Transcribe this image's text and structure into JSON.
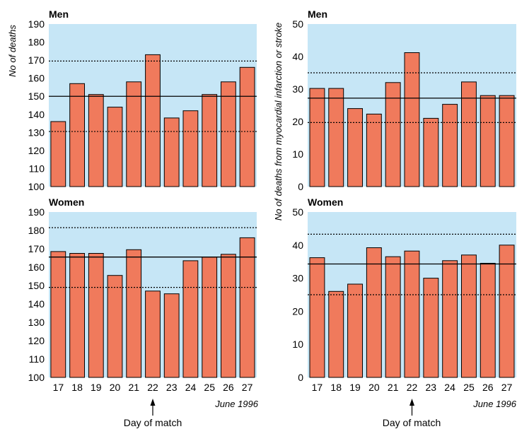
{
  "colors": {
    "panel_bg": "#c6e6f6",
    "bar_fill": "#f07a5c",
    "bar_stroke": "#000000"
  },
  "left_ylabel": "No of deaths",
  "right_ylabel": "No of deaths from myocardial infarction or stroke",
  "date_note": "June 1996",
  "match_label": "Day of match",
  "match_day": "22",
  "chart_data": [
    {
      "type": "bar",
      "title": "Men",
      "categories": [
        "17",
        "18",
        "19",
        "20",
        "21",
        "22",
        "23",
        "24",
        "25",
        "26",
        "27"
      ],
      "values": [
        136,
        157,
        151,
        144,
        158,
        173,
        138,
        142,
        151,
        158,
        166
      ],
      "ylim": [
        100,
        190
      ],
      "yticks": [
        100,
        110,
        120,
        130,
        140,
        150,
        160,
        170,
        180,
        190
      ],
      "mean_line": 150,
      "dotted_lines": [
        130.5,
        169.5
      ],
      "show_xticks": false
    },
    {
      "type": "bar",
      "title": "Men",
      "categories": [
        "17",
        "18",
        "19",
        "20",
        "21",
        "22",
        "23",
        "24",
        "25",
        "26",
        "27"
      ],
      "values": [
        30.2,
        30.2,
        24,
        22.3,
        32,
        41.2,
        21,
        25.3,
        32.2,
        28,
        28
      ],
      "ylim": [
        0,
        50
      ],
      "yticks": [
        0,
        10,
        20,
        30,
        40,
        50
      ],
      "mean_line": 27.2,
      "dotted_lines": [
        19.7,
        35
      ],
      "show_xticks": false
    },
    {
      "type": "bar",
      "title": "Women",
      "categories": [
        "17",
        "18",
        "19",
        "20",
        "21",
        "22",
        "23",
        "24",
        "25",
        "26",
        "27"
      ],
      "values": [
        168.5,
        167.5,
        167.5,
        155.5,
        169.5,
        147,
        145.5,
        163.5,
        165.5,
        167,
        176
      ],
      "ylim": [
        100,
        190
      ],
      "yticks": [
        100,
        110,
        120,
        130,
        140,
        150,
        160,
        170,
        180,
        190
      ],
      "mean_line": 165.5,
      "dotted_lines": [
        149,
        181.5
      ],
      "show_xticks": true
    },
    {
      "type": "bar",
      "title": "Women",
      "categories": [
        "17",
        "18",
        "19",
        "20",
        "21",
        "22",
        "23",
        "24",
        "25",
        "26",
        "27"
      ],
      "values": [
        36.2,
        26,
        28.2,
        39.2,
        36.5,
        38.2,
        30,
        35.3,
        37,
        34.5,
        40
      ],
      "ylim": [
        0,
        50
      ],
      "yticks": [
        0,
        10,
        20,
        30,
        40,
        50
      ],
      "mean_line": 34.3,
      "dotted_lines": [
        25,
        43.3
      ],
      "show_xticks": true
    }
  ]
}
